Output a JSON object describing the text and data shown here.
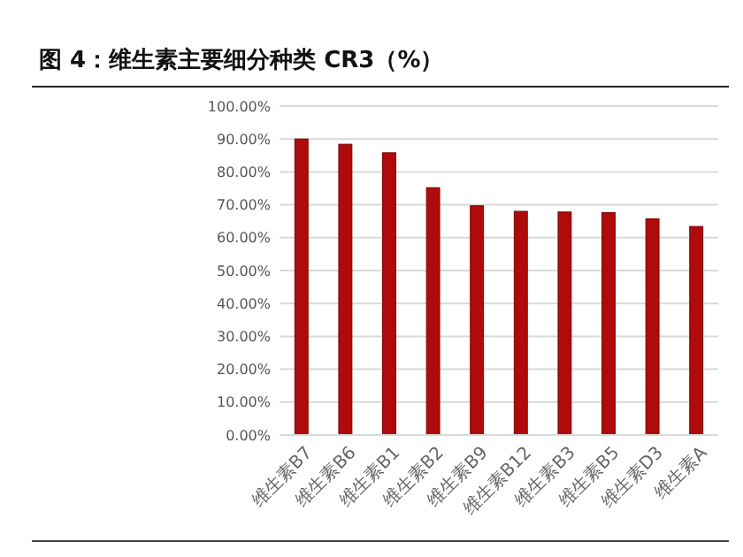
{
  "chart_data": {
    "type": "bar",
    "title": "图 4：维生素主要细分种类 CR3（%）",
    "categories": [
      "维生素B7",
      "维生素B6",
      "维生素B1",
      "维生素B2",
      "维生素B9",
      "维生素B12",
      "维生素B3",
      "维生素B5",
      "维生素D3",
      "维生素A"
    ],
    "values": [
      90.0,
      88.4,
      85.8,
      75.2,
      69.7,
      68.0,
      67.8,
      67.6,
      65.7,
      63.4
    ],
    "color": "#b00b0b",
    "ylim": [
      0,
      100
    ],
    "yticks": [
      {
        "value": 0,
        "label": "0.00%"
      },
      {
        "value": 10,
        "label": "10.00%"
      },
      {
        "value": 20,
        "label": "20.00%"
      },
      {
        "value": 30,
        "label": "30.00%"
      },
      {
        "value": 40,
        "label": "40.00%"
      },
      {
        "value": 50,
        "label": "50.00%"
      },
      {
        "value": 60,
        "label": "60.00%"
      },
      {
        "value": 70,
        "label": "70.00%"
      },
      {
        "value": 80,
        "label": "80.00%"
      },
      {
        "value": 90,
        "label": "90.00%"
      },
      {
        "value": 100,
        "label": "100.00%"
      }
    ],
    "grid": "y"
  }
}
